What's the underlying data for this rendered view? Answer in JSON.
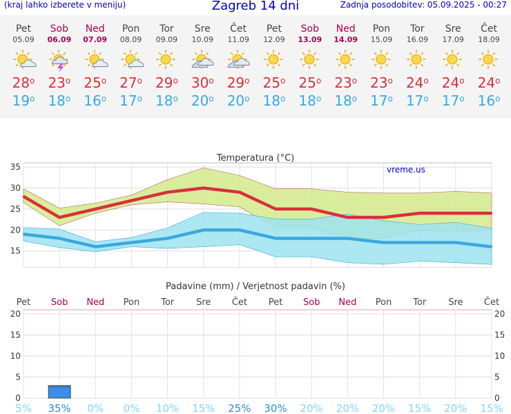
{
  "header": {
    "hint": "(kraj lahko izberete v meniju)",
    "city": "Zagreb 14 dni",
    "updated": "Zadnja posodobitev: 05.09.2025 - 00:27"
  },
  "colors": {
    "weekend": "#a8004f",
    "max": "#d8303c",
    "min": "#3aa8e0",
    "link": "#0000cc"
  },
  "days": [
    {
      "name": "Pet",
      "date": "05.09",
      "weekend": false,
      "icon": "partly-cloudy-icon",
      "max": "28",
      "min": "19"
    },
    {
      "name": "Sob",
      "date": "06.09",
      "weekend": true,
      "icon": "thunderstorm-icon",
      "max": "23",
      "min": "18"
    },
    {
      "name": "Ned",
      "date": "07.09",
      "weekend": true,
      "icon": "partly-cloudy-icon",
      "max": "25",
      "min": "16"
    },
    {
      "name": "Pon",
      "date": "08.09",
      "weekend": false,
      "icon": "partly-cloudy-icon",
      "max": "27",
      "min": "17"
    },
    {
      "name": "Tor",
      "date": "09.09",
      "weekend": false,
      "icon": "sun-icon",
      "max": "29",
      "min": "18"
    },
    {
      "name": "Sre",
      "date": "10.09",
      "weekend": false,
      "icon": "cloudy-sun-icon",
      "max": "30",
      "min": "20"
    },
    {
      "name": "Čet",
      "date": "11.09",
      "weekend": false,
      "icon": "cloudy-sun-icon",
      "max": "29",
      "min": "20"
    },
    {
      "name": "Pet",
      "date": "12.09",
      "weekend": false,
      "icon": "sun-icon",
      "max": "25",
      "min": "18"
    },
    {
      "name": "Sob",
      "date": "13.09",
      "weekend": true,
      "icon": "sun-icon",
      "max": "25",
      "min": "18"
    },
    {
      "name": "Ned",
      "date": "14.09",
      "weekend": true,
      "icon": "sun-icon",
      "max": "23",
      "min": "18"
    },
    {
      "name": "Pon",
      "date": "15.09",
      "weekend": false,
      "icon": "sun-icon",
      "max": "23",
      "min": "17"
    },
    {
      "name": "Tor",
      "date": "16.09",
      "weekend": false,
      "icon": "sun-icon",
      "max": "24",
      "min": "17"
    },
    {
      "name": "Sre",
      "date": "17.09",
      "weekend": false,
      "icon": "sun-icon",
      "max": "24",
      "min": "17"
    },
    {
      "name": "Čet",
      "date": "18.09",
      "weekend": false,
      "icon": "sun-icon",
      "max": "24",
      "min": "16"
    }
  ],
  "chart_data": [
    {
      "type": "line",
      "title": "Temperatura (°C)",
      "watermark": "vreme.us",
      "ylim": [
        11,
        36
      ],
      "yticks": [
        15,
        20,
        25,
        30,
        35
      ],
      "grid": true,
      "series": [
        {
          "name": "max",
          "color": "#d8303c",
          "values": [
            28,
            23,
            25,
            27,
            29,
            30,
            29,
            25,
            25,
            23,
            23,
            24,
            24,
            24
          ]
        },
        {
          "name": "min",
          "color": "#3aa8e0",
          "values": [
            19,
            18,
            16,
            17,
            18,
            20,
            20,
            18,
            18,
            18,
            17,
            17,
            17,
            16
          ]
        }
      ],
      "bands": [
        {
          "color": "#d4ea8c",
          "low": [
            26.5,
            21,
            24,
            26,
            26.7,
            26.2,
            25.5,
            20.5,
            20.5,
            18,
            18,
            20,
            19.5,
            20
          ],
          "high": [
            29.8,
            25.2,
            26.4,
            28.3,
            32,
            34.8,
            33,
            29.8,
            29.8,
            29,
            28.8,
            28.8,
            29.2,
            28.8
          ]
        },
        {
          "color": "#9de3f0",
          "low": [
            17.4,
            15.8,
            14.8,
            16,
            15.6,
            16,
            16.5,
            13.6,
            13.6,
            12.2,
            11.8,
            12.6,
            12.2,
            11.8
          ],
          "high": [
            20.6,
            20.2,
            17.2,
            18.2,
            20.5,
            24.2,
            24,
            22.6,
            22.6,
            23.8,
            22.2,
            21.3,
            21.8,
            20.4
          ]
        }
      ]
    },
    {
      "type": "bar",
      "title": "Padavine (mm) / Verjetnost padavin (%)",
      "ylim": [
        0,
        21
      ],
      "yticks": [
        0,
        5,
        10,
        15,
        20
      ],
      "values": [
        0,
        3,
        0,
        0,
        0,
        0,
        0,
        0,
        0,
        0,
        0,
        0,
        0,
        0
      ],
      "probability": [
        "5%",
        "35%",
        "0%",
        "0%",
        "10%",
        "15%",
        "25%",
        "30%",
        "20%",
        "20%",
        "20%",
        "15%",
        "20%",
        "15%"
      ],
      "probability_values": [
        5,
        35,
        0,
        0,
        10,
        15,
        25,
        30,
        20,
        20,
        20,
        15,
        20,
        15
      ],
      "bar_color": "#3a8ee6"
    }
  ]
}
